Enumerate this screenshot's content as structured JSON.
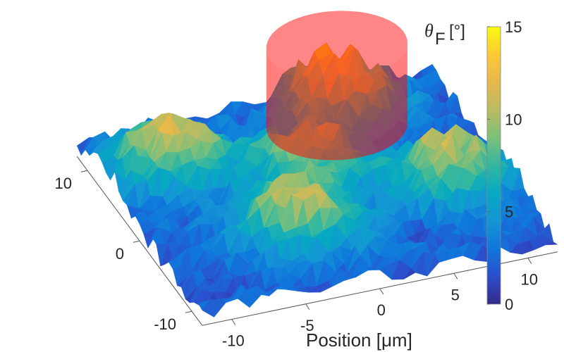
{
  "chart_data": {
    "type": "surface3d",
    "title": "",
    "xlabel": "Position [μm]",
    "ylabel": "",
    "zlabel": "",
    "xlim": [
      -12,
      12
    ],
    "ylim": [
      -12,
      12
    ],
    "zlim": [
      0,
      15
    ],
    "x_ticks": [
      -10,
      -5,
      0,
      5,
      10
    ],
    "x_tick_labels": [
      "-10",
      "-5",
      "0",
      "5",
      "10"
    ],
    "y_ticks": [
      -10,
      0,
      10
    ],
    "y_tick_labels": [
      "-10",
      "0",
      "10"
    ],
    "colorbar": {
      "title_symbol": "θ",
      "title_subscript": "F",
      "title_unit": "[°]",
      "range": [
        0,
        15
      ],
      "ticks": [
        0,
        5,
        10,
        15
      ],
      "tick_labels": [
        "0",
        "5",
        "10",
        "15"
      ],
      "colormap": "parula"
    },
    "colormap_stops": [
      "#352a87",
      "#2c4ecc",
      "#0f77db",
      "#1496d4",
      "#06a9c1",
      "#32b7a0",
      "#7cbf7b",
      "#b8bc62",
      "#e6b74c",
      "#fcc935",
      "#f9fb0e"
    ],
    "background_level": 2.0,
    "noise_amplitude": 2.0,
    "grid_size": 30,
    "peaks": [
      {
        "name": "peak-top-left",
        "x": -8,
        "y": 6,
        "height": 12,
        "width": 2.6
      },
      {
        "name": "peak-front",
        "x": -3,
        "y": -5,
        "height": 11.5,
        "width": 2.6
      },
      {
        "name": "peak-center",
        "x": 0,
        "y": 2,
        "height": 9.5,
        "width": 2.8
      },
      {
        "name": "peak-right",
        "x": 8,
        "y": -3,
        "height": 11,
        "width": 2.6
      },
      {
        "name": "peak-highlighted",
        "x": 4.5,
        "y": 9,
        "height": 13.5,
        "width": 2.6
      }
    ],
    "highlight_cylinder": {
      "center_x": 4.5,
      "center_y": 9,
      "radius": 4.5,
      "z_bottom": 0,
      "z_top": 15,
      "color": "#ff0000",
      "opacity": 0.5
    }
  }
}
